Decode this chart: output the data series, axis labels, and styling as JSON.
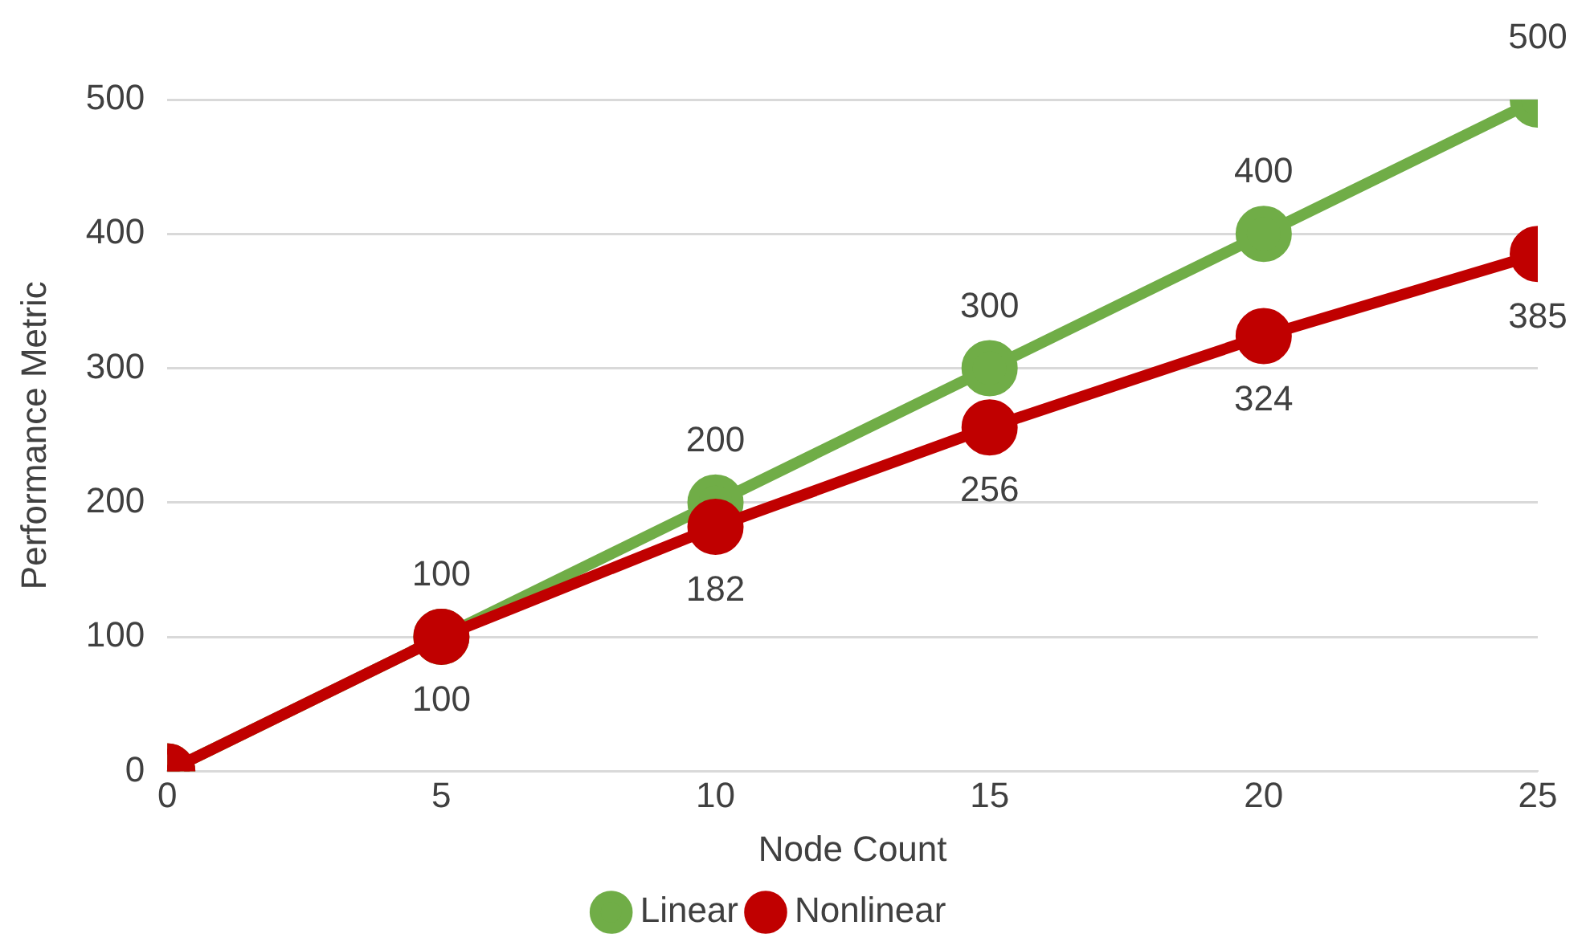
{
  "chart_data": {
    "type": "line",
    "xlabel": "Node Count",
    "ylabel": "Performance Metric",
    "x": [
      0,
      5,
      10,
      15,
      20,
      25
    ],
    "series": [
      {
        "name": "Linear",
        "color": "#70ad47",
        "values": [
          0,
          100,
          200,
          300,
          400,
          500
        ],
        "value_labels": [
          null,
          "100",
          "200",
          "300",
          "400",
          "500"
        ]
      },
      {
        "name": "Nonlinear",
        "color": "#c00000",
        "values": [
          0,
          100,
          182,
          256,
          324,
          385
        ],
        "value_labels": [
          null,
          "100",
          "182",
          "256",
          "324",
          "385"
        ]
      }
    ],
    "xlim": [
      0,
      25
    ],
    "xticks": [
      0,
      5,
      10,
      15,
      20,
      25
    ],
    "ylim": [
      0,
      500
    ],
    "yticks": [
      0,
      100,
      200,
      300,
      400,
      500
    ],
    "grid": "y",
    "legend": "bottom",
    "marker": "circle",
    "line_style": "solid"
  }
}
